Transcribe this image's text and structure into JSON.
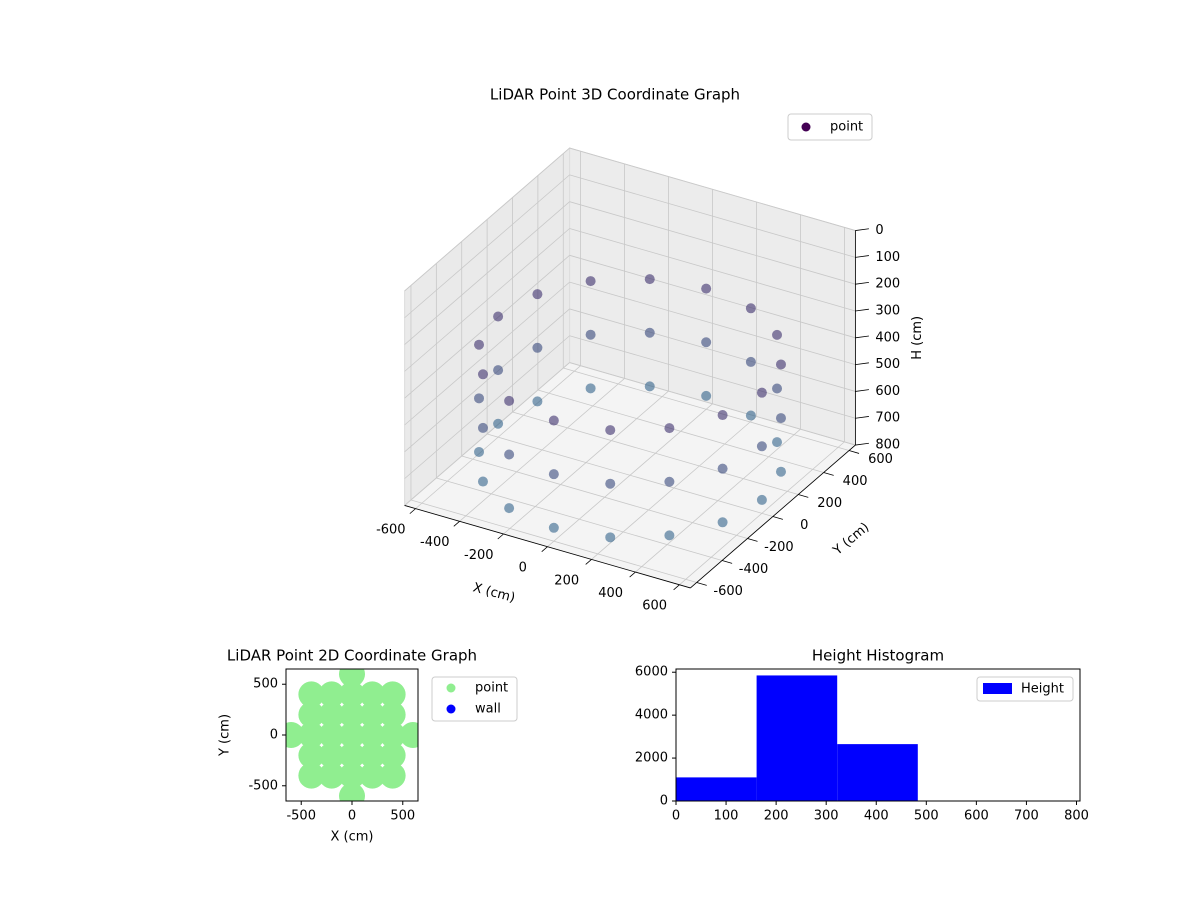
{
  "chart_data": [
    {
      "type": "scatter3d",
      "title": "LiDAR Point 3D Coordinate Graph",
      "xlabel": "X (cm)",
      "ylabel": "Y (cm)",
      "zlabel": "H (cm)",
      "xlim": [
        -650,
        650
      ],
      "ylim": [
        -650,
        650
      ],
      "zlim": [
        0,
        800
      ],
      "zinvert": true,
      "xticks": [
        -600,
        -400,
        -200,
        0,
        200,
        400,
        600
      ],
      "yticks": [
        -600,
        -400,
        -200,
        0,
        200,
        400,
        600
      ],
      "zticks": [
        0,
        100,
        200,
        300,
        400,
        500,
        600,
        700,
        800
      ],
      "colormap": "viridis",
      "legend": "upper right",
      "grid": true,
      "series": [
        {
          "name": "point",
          "color": "#440154",
          "x": [
            600,
            554,
            424,
            230,
            0,
            -230,
            -424,
            -554,
            -600,
            -554,
            -424,
            -230,
            0,
            230,
            424,
            554,
            600,
            554,
            424,
            230,
            0,
            -230,
            -424,
            -554,
            -600,
            -554,
            -424,
            -230,
            0,
            230,
            424,
            554,
            600,
            554,
            424,
            230,
            0,
            -230,
            -424,
            -554,
            -600,
            -554,
            -424,
            -230,
            0,
            230,
            424,
            554
          ],
          "y": [
            0,
            230,
            424,
            554,
            600,
            554,
            424,
            230,
            0,
            -230,
            -424,
            -554,
            -600,
            -554,
            -424,
            -230,
            0,
            230,
            424,
            554,
            600,
            554,
            424,
            230,
            0,
            -230,
            -424,
            -554,
            -600,
            -554,
            -424,
            -230,
            0,
            230,
            424,
            554,
            600,
            554,
            424,
            230,
            0,
            -230,
            -424,
            -554,
            -600,
            -554,
            -424,
            -230
          ],
          "z": [
            350,
            350,
            350,
            350,
            350,
            350,
            350,
            350,
            350,
            350,
            350,
            350,
            350,
            350,
            350,
            350,
            550,
            550,
            550,
            550,
            550,
            550,
            550,
            550,
            550,
            550,
            550,
            550,
            550,
            550,
            550,
            550,
            750,
            750,
            750,
            750,
            750,
            750,
            750,
            750,
            750,
            750,
            750,
            750,
            750,
            750,
            750,
            750
          ]
        }
      ]
    },
    {
      "type": "scatter",
      "title": "LiDAR Point 2D Coordinate Graph",
      "xlabel": "X (cm)",
      "ylabel": "Y (cm)",
      "xlim": [
        -650,
        650
      ],
      "ylim": [
        -650,
        650
      ],
      "xticks": [
        -500,
        0,
        500
      ],
      "yticks": [
        -500,
        0,
        500
      ],
      "legend": "outside right",
      "series": [
        {
          "name": "point",
          "color": "#90ee90",
          "x": [
            0,
            0,
            0,
            0,
            0,
            0,
            0,
            -200,
            -200,
            -200,
            -200,
            -200,
            200,
            200,
            200,
            200,
            200,
            -400,
            -400,
            -400,
            -400,
            -400,
            400,
            400,
            400,
            400,
            400,
            -600,
            600
          ],
          "y": [
            -600,
            -400,
            -200,
            0,
            200,
            400,
            600,
            -400,
            -200,
            0,
            200,
            400,
            -400,
            -200,
            0,
            200,
            400,
            -400,
            -200,
            0,
            200,
            400,
            -400,
            -200,
            0,
            200,
            400,
            0,
            0
          ]
        },
        {
          "name": "wall",
          "color": "#0000ff",
          "x": [],
          "y": []
        }
      ]
    },
    {
      "type": "histogram",
      "title": "Height Histogram",
      "xlim": [
        0,
        807
      ],
      "ylim": [
        0,
        6150
      ],
      "xticks": [
        0,
        100,
        200,
        300,
        400,
        500,
        600,
        700,
        800
      ],
      "yticks": [
        0,
        2000,
        4000,
        6000
      ],
      "legend": "upper right",
      "bins": [
        0,
        161,
        322,
        483,
        644,
        805
      ],
      "series": [
        {
          "name": "Height",
          "color": "#0000ff",
          "values": [
            1100,
            5850,
            2650,
            15,
            10
          ]
        }
      ]
    }
  ]
}
